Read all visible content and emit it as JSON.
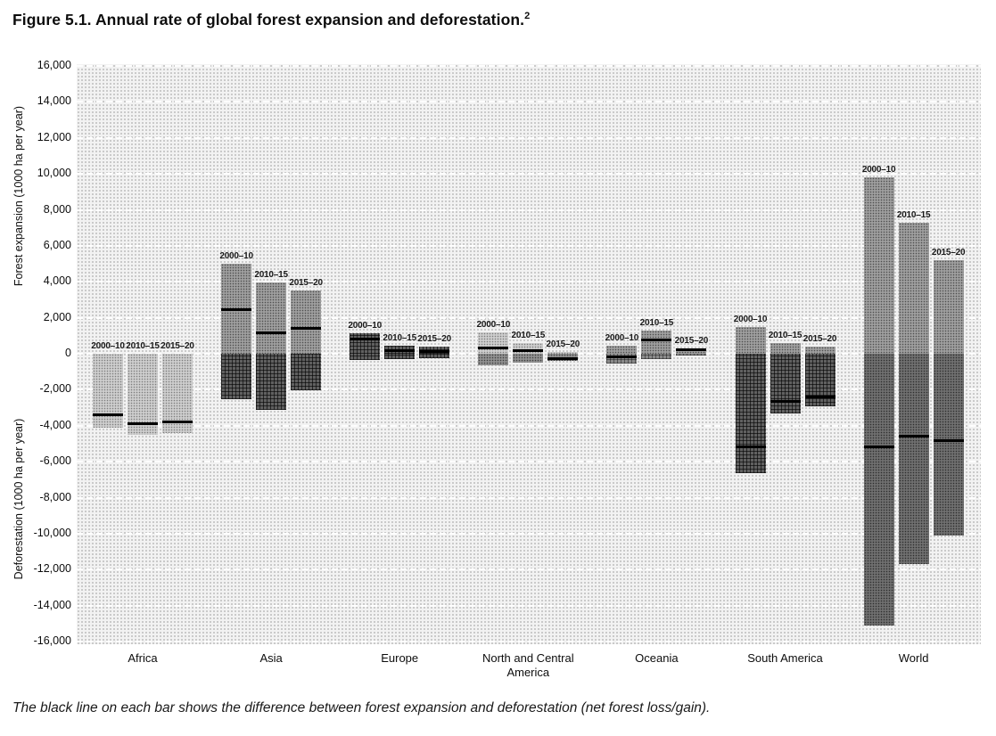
{
  "title": "Figure 5.1. Annual rate of global forest expansion and deforestation.",
  "title_superscript": "2",
  "footnote": "The black line on each bar shows the difference between forest expansion and deforestation (net forest loss/gain).",
  "y_axis": {
    "label_top": "Forest expansion (1000 ha per year)",
    "label_bottom": "Deforestation (1000 ha per year)",
    "ticks": [
      "16,000",
      "14,000",
      "12,000",
      "10,000",
      "8,000",
      "6,000",
      "4,000",
      "2,000",
      "0",
      "-2,000",
      "-4,000",
      "-6,000",
      "-8,000",
      "-10,000",
      "-12,000",
      "-14,000",
      "-16,000"
    ],
    "tick_values": [
      16000,
      14000,
      12000,
      10000,
      8000,
      6000,
      4000,
      2000,
      0,
      -2000,
      -4000,
      -6000,
      -8000,
      -10000,
      -12000,
      -14000,
      -16000
    ]
  },
  "colors": {
    "plot_bg": "#f2f2f2",
    "plot_halftone_dot": "#bcbcbc",
    "gridline": "#ffffff",
    "net_line": "#000000",
    "text": "#111111",
    "fills": {
      "dot-light": "#cdcdcd",
      "dot-mid": "#9e9e9e",
      "dot-mid2": "#8f8f8f",
      "dot-dark": "#6f6f6f",
      "hatch-dark": "#606060",
      "hatch-mid": "#8a8a8a"
    }
  },
  "chart_data": {
    "type": "bar",
    "title": "Figure 5.1. Annual rate of global forest expansion and deforestation.",
    "unit": "1000 ha per year",
    "ylabel_positive": "Forest expansion (1000 ha per year)",
    "ylabel_negative": "Deforestation (1000 ha per year)",
    "ylim": [
      -16000,
      16000
    ],
    "ytick_step": 2000,
    "grid": true,
    "periods": [
      "2000–10",
      "2010–15",
      "2015–20"
    ],
    "categories": [
      "Africa",
      "Asia",
      "Europe",
      "North and Central America",
      "Oceania",
      "South America",
      "World"
    ],
    "regions": [
      {
        "label": "Africa",
        "expansion": [
          0,
          0,
          0
        ],
        "deforestation": [
          -4100,
          -4500,
          -4400
        ],
        "net": [
          -3400,
          -3900,
          -3800
        ],
        "exp_fill": "dot-light",
        "def_fill": "dot-light"
      },
      {
        "label": "Asia",
        "expansion": [
          5000,
          3950,
          3500
        ],
        "deforestation": [
          -2550,
          -3100,
          -2050
        ],
        "net": [
          2450,
          1150,
          1400
        ],
        "exp_fill": "dot-mid",
        "def_fill": "hatch-dark"
      },
      {
        "label": "Europe",
        "expansion": [
          1150,
          450,
          400
        ],
        "deforestation": [
          -350,
          -300,
          -250
        ],
        "net": [
          800,
          150,
          130
        ],
        "exp_fill": "hatch-dark",
        "def_fill": "hatch-dark"
      },
      {
        "label": "North and Central America",
        "expansion": [
          1200,
          600,
          100
        ],
        "deforestation": [
          -650,
          -500,
          -400
        ],
        "net": [
          300,
          150,
          -250
        ],
        "exp_fill": "dot-light",
        "def_fill": "dot-mid2"
      },
      {
        "label": "Oceania",
        "expansion": [
          450,
          1300,
          300
        ],
        "deforestation": [
          -550,
          -300,
          -100
        ],
        "net": [
          -150,
          750,
          200
        ],
        "exp_fill": "dot-mid",
        "def_fill": "hatch-mid"
      },
      {
        "label": "South America",
        "expansion": [
          1500,
          600,
          400
        ],
        "deforestation": [
          -6650,
          -3300,
          -2900
        ],
        "net": [
          -5200,
          -2650,
          -2400
        ],
        "exp_fill": "dot-mid",
        "def_fill": "hatch-dark"
      },
      {
        "label": "World",
        "expansion": [
          9800,
          7300,
          5200
        ],
        "deforestation": [
          -15100,
          -11700,
          -10100
        ],
        "net": [
          -5200,
          -4600,
          -4850
        ],
        "exp_fill": "dot-mid",
        "def_fill": "dot-dark"
      }
    ]
  }
}
